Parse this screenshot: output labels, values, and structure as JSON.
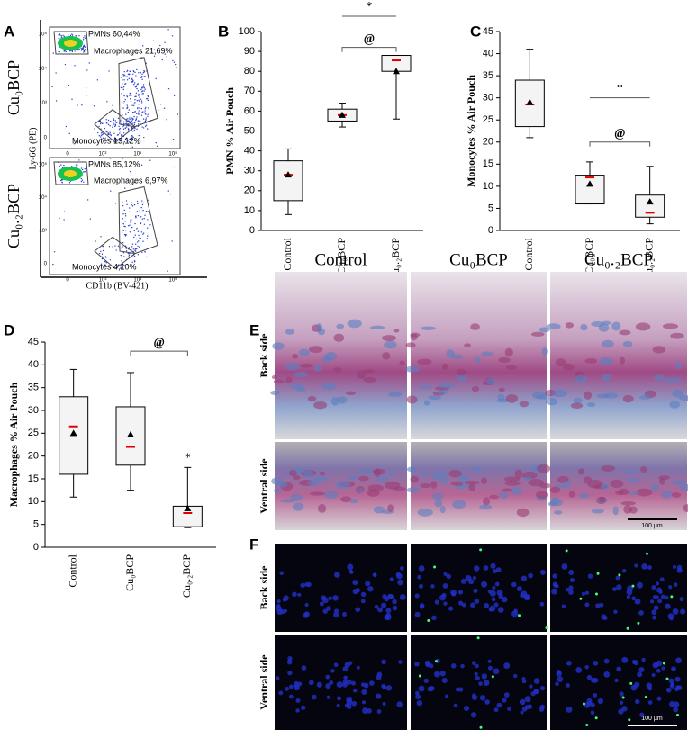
{
  "panel_letters": [
    "A",
    "B",
    "C",
    "D",
    "E",
    "F"
  ],
  "flow": {
    "y_axis_label": "Ly-6G (PE)",
    "x_axis_label": "CD11b (BV-421)",
    "y_ticks": [
      "10⁵",
      "10⁴",
      "10³",
      "0"
    ],
    "x_ticks": [
      "0",
      "10³",
      "10⁴",
      "10⁵"
    ],
    "plots": [
      {
        "row_label": "Cu₀BCP",
        "gates": [
          "PMNs 60,44%",
          "Macrophages 21,69%",
          "Monocytes 13,12%"
        ]
      },
      {
        "row_label": "Cu₀.₂BCP",
        "gates": [
          "PMNs 85,12%",
          "Macrophages 6,97%",
          "Monocytes 4,10%"
        ]
      }
    ]
  },
  "chart_data": [
    {
      "type": "box",
      "y_axis_label": "PMN % Air Pouch",
      "categories": [
        "Control",
        "Cu₀BCP",
        "Cu₀.₂BCP"
      ],
      "whisker_low": [
        8,
        52,
        56
      ],
      "q1": [
        15,
        55,
        80
      ],
      "median": [
        28,
        58,
        85.5
      ],
      "q3": [
        35,
        61,
        88
      ],
      "whisker_high": [
        41,
        64,
        88
      ],
      "mean": [
        28,
        58,
        80
      ],
      "median_color": "#e00000",
      "mean_color": "#000000",
      "ylim": [
        0,
        100
      ],
      "yticks": [
        0,
        10,
        20,
        30,
        40,
        50,
        60,
        70,
        80,
        90,
        100
      ],
      "annotations": [
        "*",
        "@"
      ]
    },
    {
      "type": "box",
      "y_axis_label": "Monocytes % Air Pouch",
      "categories": [
        "Control",
        "Cu₀BCP",
        "Cu₀.₂BCP"
      ],
      "whisker_low": [
        21,
        6,
        1.5
      ],
      "q1": [
        23.5,
        6,
        3
      ],
      "median": [
        28.5,
        12,
        4
      ],
      "q3": [
        34,
        12.5,
        8
      ],
      "whisker_high": [
        41,
        15.5,
        14.5
      ],
      "mean": [
        29,
        10.5,
        6.5
      ],
      "median_color": "#e00000",
      "mean_color": "#000000",
      "ylim": [
        0,
        45
      ],
      "yticks": [
        0,
        5,
        10,
        15,
        20,
        25,
        30,
        35,
        40,
        45
      ],
      "annotations": [
        "*",
        "@"
      ]
    },
    {
      "type": "box",
      "y_axis_label": "Macrophages % Air Pouch",
      "categories": [
        "Control",
        "Cu₀BCP",
        "Cu₀.₂BCP"
      ],
      "whisker_low": [
        11,
        12.5,
        4.3
      ],
      "q1": [
        16,
        18,
        4.5
      ],
      "median": [
        26.5,
        22,
        7.5
      ],
      "q3": [
        33,
        30.8,
        9
      ],
      "whisker_high": [
        39,
        38.3,
        17.5
      ],
      "mean": [
        25,
        24.7,
        8.5
      ],
      "median_color": "#e00000",
      "mean_color": "#000000",
      "ylim": [
        0,
        45
      ],
      "yticks": [
        0,
        5,
        10,
        15,
        20,
        25,
        30,
        35,
        40,
        45
      ],
      "annotations": [
        "@",
        "*"
      ]
    }
  ],
  "histology": {
    "columns": [
      "Control",
      "Cu₀BCP",
      "Cu₀.₂BCP"
    ],
    "rows": [
      "Back side",
      "Ventral side"
    ],
    "scale_bar": "100 µm"
  },
  "fluorescence": {
    "rows": [
      "Back side",
      "Ventral side"
    ],
    "scale_bar": "100 µm"
  }
}
